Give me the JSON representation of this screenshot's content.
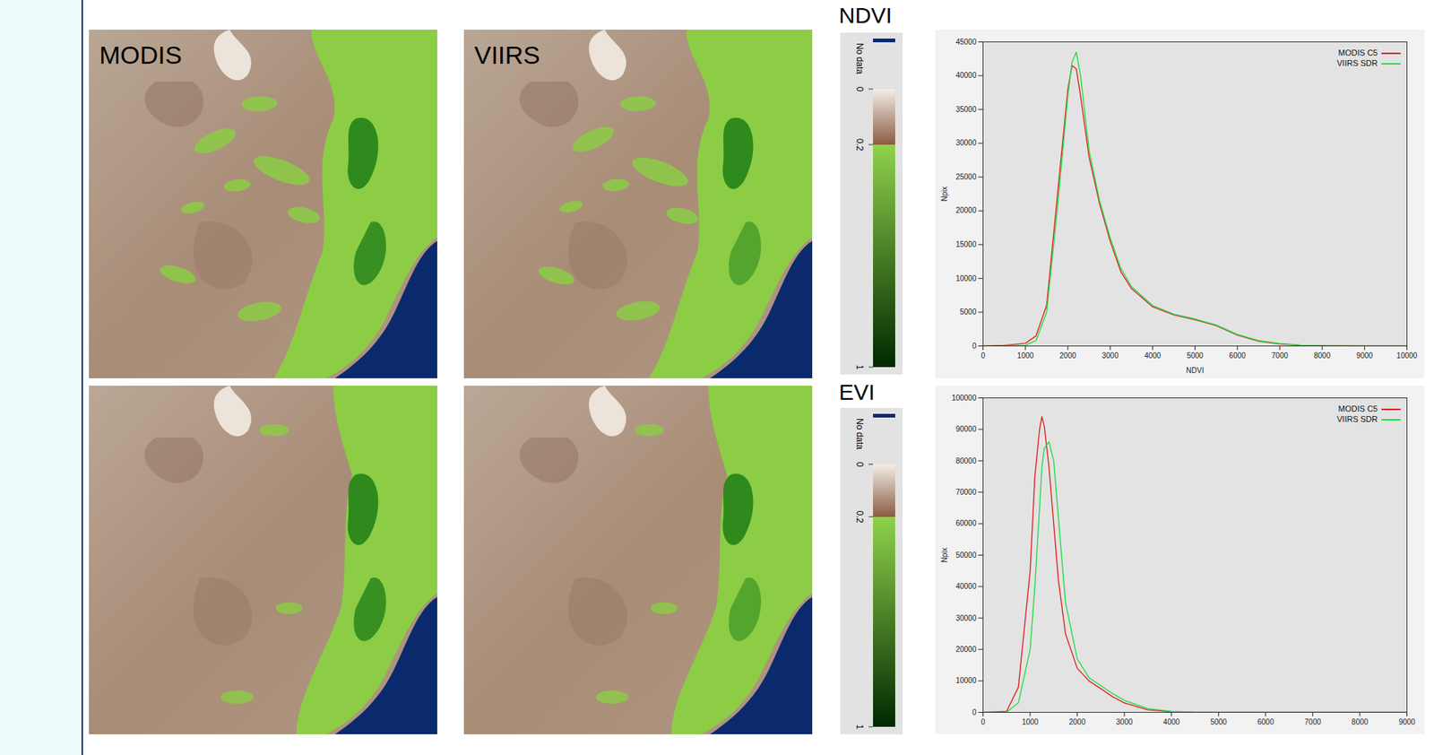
{
  "maps": {
    "columns": [
      "MODIS",
      "VIIRS"
    ],
    "rows": [
      "NDVI",
      "EVI"
    ]
  },
  "colorbars": [
    {
      "title": "NDVI",
      "no_data_label": "No data",
      "range": [
        0,
        1
      ],
      "ticks": [
        0,
        0.2,
        1
      ]
    },
    {
      "title": "EVI",
      "no_data_label": "No data",
      "range": [
        0,
        1
      ],
      "ticks": [
        0,
        0.2,
        1
      ]
    }
  ],
  "chart_data": [
    {
      "type": "line",
      "x_label": "NDVI",
      "y_label": "Npix",
      "x": [
        0,
        500,
        1000,
        1250,
        1500,
        1750,
        2000,
        2100,
        2200,
        2300,
        2500,
        2750,
        3000,
        3250,
        3500,
        4000,
        4500,
        5000,
        5500,
        6000,
        6500,
        7000,
        7500,
        8000,
        9000,
        10000
      ],
      "series": [
        {
          "name": "MODIS C5",
          "color": "#e02020",
          "values": [
            0,
            100,
            400,
            1500,
            6000,
            22000,
            38000,
            41500,
            41000,
            37000,
            28000,
            21000,
            15500,
            11000,
            8500,
            5800,
            4600,
            3900,
            3000,
            1600,
            700,
            300,
            100,
            30,
            0,
            0
          ]
        },
        {
          "name": "VIIRS SDR",
          "color": "#22dd44",
          "values": [
            0,
            0,
            100,
            800,
            5000,
            20000,
            37000,
            42000,
            43500,
            40000,
            29000,
            21500,
            16000,
            11500,
            8800,
            6000,
            4700,
            4000,
            3100,
            1700,
            800,
            350,
            120,
            40,
            0,
            0
          ]
        }
      ],
      "xlim": [
        0,
        10000
      ],
      "ylim": [
        0,
        45000
      ],
      "xticks": [
        0,
        1000,
        2000,
        3000,
        4000,
        5000,
        6000,
        7000,
        8000,
        9000,
        10000
      ],
      "yticks": [
        0,
        5000,
        10000,
        15000,
        20000,
        25000,
        30000,
        35000,
        40000,
        45000
      ],
      "grid": false,
      "legend": "top-right"
    },
    {
      "type": "line",
      "y_label": "Npix",
      "x": [
        0,
        500,
        750,
        1000,
        1100,
        1200,
        1250,
        1300,
        1400,
        1500,
        1600,
        1750,
        2000,
        2250,
        2500,
        2750,
        3000,
        3500,
        4000,
        4500,
        9000
      ],
      "series": [
        {
          "name": "MODIS C5",
          "color": "#e02020",
          "values": [
            0,
            300,
            8000,
            45000,
            75000,
            90000,
            94000,
            91000,
            78000,
            60000,
            42000,
            25000,
            14000,
            10000,
            7500,
            5000,
            3000,
            800,
            200,
            0,
            0
          ]
        },
        {
          "name": "VIIRS SDR",
          "color": "#22dd44",
          "values": [
            0,
            100,
            3000,
            20000,
            40000,
            65000,
            78000,
            84000,
            86000,
            80000,
            62000,
            35000,
            17000,
            11000,
            8500,
            6000,
            3800,
            1200,
            300,
            50,
            0
          ]
        }
      ],
      "xlim": [
        0,
        9000
      ],
      "ylim": [
        0,
        100000
      ],
      "xticks": [
        0,
        1000,
        2000,
        3000,
        4000,
        5000,
        6000,
        7000,
        8000,
        9000
      ],
      "yticks": [
        0,
        10000,
        20000,
        30000,
        40000,
        50000,
        60000,
        70000,
        80000,
        90000,
        100000
      ],
      "grid": false,
      "legend": "top-right"
    }
  ]
}
